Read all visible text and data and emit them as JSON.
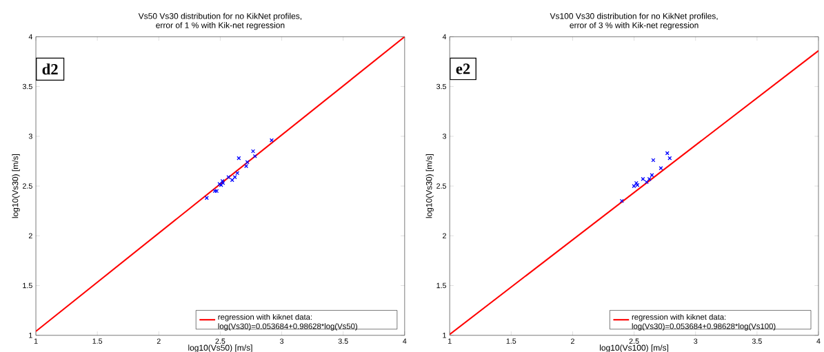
{
  "chart_data": [
    {
      "type": "scatter",
      "title": "Vs50 Vs30 distribution for no KikNet profiles,\nerror of 1 % with Kik-net regression",
      "xlabel": "log10(Vs50) [m/s]",
      "ylabel": "log10(Vs30) [m/s]",
      "annotations": [
        "d2"
      ],
      "xlim": [
        1,
        4
      ],
      "ylim": [
        1,
        4
      ],
      "xticks": [
        1,
        1.5,
        2,
        2.5,
        3,
        3.5,
        4
      ],
      "yticks": [
        1,
        1.5,
        2,
        2.5,
        3,
        3.5,
        4
      ],
      "legend": "bottom right",
      "grid": false,
      "series": [
        {
          "color": "#0000ff",
          "marker": "cross",
          "x": [
            2.39,
            2.456,
            2.471,
            2.494,
            2.507,
            2.518,
            2.522,
            2.567,
            2.597,
            2.619,
            2.639,
            2.651,
            2.711,
            2.72,
            2.767,
            2.782,
            2.918
          ],
          "values": [
            2.38,
            2.45,
            2.45,
            2.52,
            2.51,
            2.55,
            2.53,
            2.59,
            2.56,
            2.59,
            2.63,
            2.78,
            2.7,
            2.74,
            2.85,
            2.8,
            2.96
          ]
        },
        {
          "type": "line",
          "name": "regression with kiknet data: log(Vs30)=0.053684+0.98628*log(Vs50)",
          "color": "#ff0000",
          "marker": "none",
          "line_style": "solid",
          "x": [
            1,
            4
          ],
          "values": [
            1.04,
            4.0
          ]
        }
      ]
    },
    {
      "type": "scatter",
      "title": "Vs100 Vs30 distribution for no KikNet profiles,\nerror of 3 % with Kik-net regression",
      "xlabel": "log10(Vs100) [m/s]",
      "ylabel": "log10(Vs30) [m/s]",
      "annotations": [
        "e2"
      ],
      "xlim": [
        1,
        4
      ],
      "ylim": [
        1,
        4
      ],
      "xticks": [
        1,
        1.5,
        2,
        2.5,
        3,
        3.5,
        4
      ],
      "yticks": [
        1,
        1.5,
        2,
        2.5,
        3,
        3.5,
        4
      ],
      "legend": "bottom right",
      "grid": false,
      "series": [
        {
          "color": "#0000ff",
          "marker": "cross",
          "x": [
            2.4,
            2.499,
            2.518,
            2.527,
            2.572,
            2.602,
            2.624,
            2.645,
            2.656,
            2.718,
            2.77,
            2.79
          ],
          "values": [
            2.35,
            2.5,
            2.53,
            2.51,
            2.57,
            2.54,
            2.57,
            2.61,
            2.76,
            2.68,
            2.83,
            2.78
          ]
        },
        {
          "type": "line",
          "name": "regression with kiknet data: log(Vs30)=0.053684+0.98628*log(Vs100)",
          "color": "#ff0000",
          "marker": "none",
          "line_style": "solid",
          "x": [
            1,
            4
          ],
          "values": [
            1.01,
            3.86
          ]
        }
      ]
    }
  ]
}
